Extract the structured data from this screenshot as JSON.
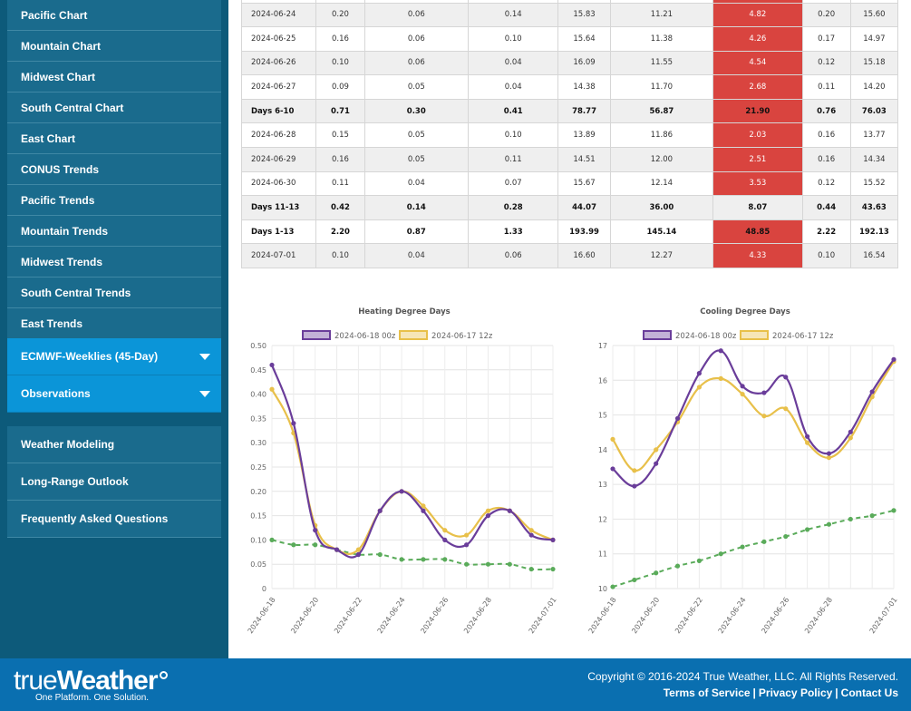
{
  "sidebar": {
    "regional_items": [
      "Pacific Chart",
      "Mountain Chart",
      "Midwest Chart",
      "South Central Chart",
      "East Chart",
      "CONUS Trends",
      "Pacific Trends",
      "Mountain Trends",
      "Midwest Trends",
      "South Central Trends",
      "East Trends"
    ],
    "dropdowns": [
      "ECMWF-Weeklies (45-Day)",
      "Observations"
    ],
    "links": [
      "Weather Modeling",
      "Long-Range Outlook",
      "Frequently Asked Questions"
    ]
  },
  "table": {
    "rows": [
      {
        "date": "2024-06-24",
        "c": [
          "0.20",
          "0.06",
          "0.14",
          "15.83",
          "11.21",
          "4.82",
          "0.20",
          "15.60"
        ],
        "style": "gray"
      },
      {
        "date": "2024-06-25",
        "c": [
          "0.16",
          "0.06",
          "0.10",
          "15.64",
          "11.38",
          "4.26",
          "0.17",
          "14.97"
        ],
        "style": ""
      },
      {
        "date": "2024-06-26",
        "c": [
          "0.10",
          "0.06",
          "0.04",
          "16.09",
          "11.55",
          "4.54",
          "0.12",
          "15.18"
        ],
        "style": "gray"
      },
      {
        "date": "2024-06-27",
        "c": [
          "0.09",
          "0.05",
          "0.04",
          "14.38",
          "11.70",
          "2.68",
          "0.11",
          "14.20"
        ],
        "style": ""
      },
      {
        "date": "Days 6-10",
        "c": [
          "0.71",
          "0.30",
          "0.41",
          "78.77",
          "56.87",
          "21.90",
          "0.76",
          "76.03"
        ],
        "style": "gray total"
      },
      {
        "date": "2024-06-28",
        "c": [
          "0.15",
          "0.05",
          "0.10",
          "13.89",
          "11.86",
          "2.03",
          "0.16",
          "13.77"
        ],
        "style": ""
      },
      {
        "date": "2024-06-29",
        "c": [
          "0.16",
          "0.05",
          "0.11",
          "14.51",
          "12.00",
          "2.51",
          "0.16",
          "14.34"
        ],
        "style": "gray"
      },
      {
        "date": "2024-06-30",
        "c": [
          "0.11",
          "0.04",
          "0.07",
          "15.67",
          "12.14",
          "3.53",
          "0.12",
          "15.52"
        ],
        "style": ""
      },
      {
        "date": "Days 11-13",
        "c": [
          "0.42",
          "0.14",
          "0.28",
          "44.07",
          "36.00",
          "8.07",
          "0.44",
          "43.63"
        ],
        "style": "gray total nored"
      },
      {
        "date": "Days 1-13",
        "c": [
          "2.20",
          "0.87",
          "1.33",
          "193.99",
          "145.14",
          "48.85",
          "2.22",
          "192.13"
        ],
        "style": "total"
      },
      {
        "date": "2024-07-01",
        "c": [
          "0.10",
          "0.04",
          "0.06",
          "16.60",
          "12.27",
          "4.33",
          "0.10",
          "16.54"
        ],
        "style": "gray"
      }
    ]
  },
  "chart_data": [
    {
      "type": "line",
      "title": "Heating Degree Days",
      "x": [
        "2024-06-18",
        "2024-06-19",
        "2024-06-20",
        "2024-06-21",
        "2024-06-22",
        "2024-06-23",
        "2024-06-24",
        "2024-06-25",
        "2024-06-26",
        "2024-06-27",
        "2024-06-28",
        "2024-06-29",
        "2024-06-30",
        "2024-07-01"
      ],
      "xticks": [
        "2024-06-18",
        "2024-06-20",
        "2024-06-22",
        "2024-06-24",
        "2024-06-26",
        "2024-06-28",
        "2024-07-01"
      ],
      "ylim": [
        0,
        0.5
      ],
      "yticks": [
        "0",
        "0.05",
        "0.10",
        "0.15",
        "0.20",
        "0.25",
        "0.30",
        "0.35",
        "0.40",
        "0.45",
        "0.50"
      ],
      "legend_position": "top",
      "series": [
        {
          "name": "2024-06-18 00z",
          "color": "#6a3d9a",
          "values": [
            0.46,
            0.34,
            0.12,
            0.08,
            0.07,
            0.16,
            0.2,
            0.16,
            0.1,
            0.09,
            0.15,
            0.16,
            0.11,
            0.1
          ]
        },
        {
          "name": "2024-06-17 12z",
          "color": "#e8c04a",
          "values": [
            0.41,
            0.32,
            0.13,
            0.08,
            0.08,
            0.16,
            0.2,
            0.17,
            0.12,
            0.11,
            0.16,
            0.16,
            0.12,
            0.1
          ]
        },
        {
          "name": "",
          "color": "#5aab5a",
          "dashed": true,
          "values": [
            0.1,
            0.09,
            0.09,
            0.08,
            0.07,
            0.07,
            0.06,
            0.06,
            0.06,
            0.05,
            0.05,
            0.05,
            0.04,
            0.04
          ]
        }
      ]
    },
    {
      "type": "line",
      "title": "Cooling Degree Days",
      "x": [
        "2024-06-18",
        "2024-06-19",
        "2024-06-20",
        "2024-06-21",
        "2024-06-22",
        "2024-06-23",
        "2024-06-24",
        "2024-06-25",
        "2024-06-26",
        "2024-06-27",
        "2024-06-28",
        "2024-06-29",
        "2024-06-30",
        "2024-07-01"
      ],
      "xticks": [
        "2024-06-18",
        "2024-06-20",
        "2024-06-22",
        "2024-06-24",
        "2024-06-26",
        "2024-06-28",
        "2024-07-01"
      ],
      "ylim": [
        10,
        17
      ],
      "yticks": [
        "10",
        "11",
        "12",
        "13",
        "14",
        "15",
        "16",
        "17"
      ],
      "legend_position": "top",
      "series": [
        {
          "name": "2024-06-18 00z",
          "color": "#6a3d9a",
          "values": [
            13.45,
            12.95,
            13.6,
            14.9,
            16.2,
            16.85,
            15.83,
            15.64,
            16.09,
            14.38,
            13.89,
            14.51,
            15.67,
            16.6
          ]
        },
        {
          "name": "2024-06-17 12z",
          "color": "#e8c04a",
          "values": [
            14.3,
            13.4,
            14.0,
            14.8,
            15.8,
            16.05,
            15.6,
            14.97,
            15.18,
            14.2,
            13.77,
            14.34,
            15.52,
            16.54
          ]
        },
        {
          "name": "",
          "color": "#5aab5a",
          "dashed": true,
          "values": [
            10.05,
            10.25,
            10.45,
            10.65,
            10.8,
            11.0,
            11.2,
            11.35,
            11.5,
            11.7,
            11.85,
            12.0,
            12.1,
            12.25
          ]
        }
      ]
    }
  ],
  "footer": {
    "logo_light": "true",
    "logo_bold": "Weather",
    "tagline": "One Platform. One Solution.",
    "copyright": "Copyright © 2016-2024 True Weather, LLC. All Rights Reserved.",
    "links": [
      "Terms of Service",
      "Privacy Policy",
      "Contact Us"
    ]
  }
}
